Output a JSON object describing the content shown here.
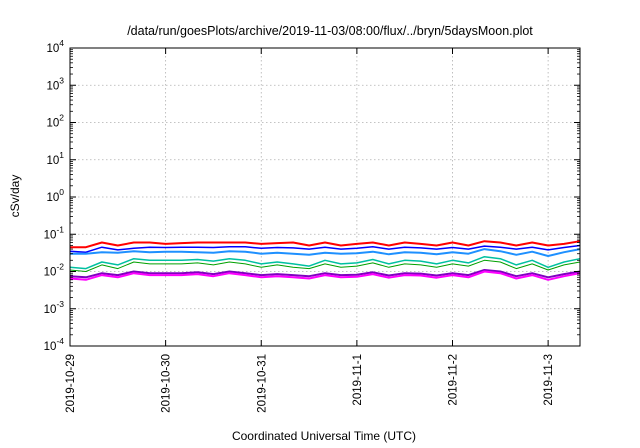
{
  "chart_data": {
    "type": "line",
    "title": "/data/run/goesPlots/archive/2019-11-03/08:00/flux/../bryn/5daysMoon.plot",
    "xlabel": "Coordinated Universal Time (UTC)",
    "ylabel": "cSv/day",
    "y_scale": "log",
    "ylim": [
      0.0001,
      10000
    ],
    "y_ticks": [
      {
        "base": "10",
        "exp": "-4",
        "value": 0.0001
      },
      {
        "base": "10",
        "exp": "-3",
        "value": 0.001
      },
      {
        "base": "10",
        "exp": "-2",
        "value": 0.01
      },
      {
        "base": "10",
        "exp": "-1",
        "value": 0.1
      },
      {
        "base": "10",
        "exp": "0",
        "value": 1
      },
      {
        "base": "10",
        "exp": "1",
        "value": 10
      },
      {
        "base": "10",
        "exp": "2",
        "value": 100
      },
      {
        "base": "10",
        "exp": "3",
        "value": 1000
      },
      {
        "base": "10",
        "exp": "4",
        "value": 10000
      }
    ],
    "xlim": [
      "2019-10-29T00:00",
      "2019-11-03T08:00"
    ],
    "x_ticks": [
      "2019-10-29",
      "2019-10-30",
      "2019-10-31",
      "2019-11-1",
      "2019-11-2",
      "2019-11-3"
    ],
    "x": [
      "2019-10-29T00:00",
      "2019-10-29T04:00",
      "2019-10-29T08:00",
      "2019-10-29T12:00",
      "2019-10-29T16:00",
      "2019-10-29T20:00",
      "2019-10-30T00:00",
      "2019-10-30T04:00",
      "2019-10-30T08:00",
      "2019-10-30T12:00",
      "2019-10-30T16:00",
      "2019-10-30T20:00",
      "2019-10-31T00:00",
      "2019-10-31T04:00",
      "2019-10-31T08:00",
      "2019-10-31T12:00",
      "2019-10-31T16:00",
      "2019-10-31T20:00",
      "2019-11-01T00:00",
      "2019-11-01T04:00",
      "2019-11-01T08:00",
      "2019-11-01T12:00",
      "2019-11-01T16:00",
      "2019-11-01T20:00",
      "2019-11-02T00:00",
      "2019-11-02T04:00",
      "2019-11-02T08:00",
      "2019-11-02T12:00",
      "2019-11-02T16:00",
      "2019-11-02T20:00",
      "2019-11-03T00:00",
      "2019-11-03T04:00",
      "2019-11-03T08:00"
    ],
    "grid": true,
    "series": [
      {
        "color": "#ff0000",
        "width": 2,
        "values": [
          0.045,
          0.045,
          0.06,
          0.05,
          0.06,
          0.06,
          0.055,
          0.058,
          0.06,
          0.06,
          0.06,
          0.06,
          0.055,
          0.058,
          0.06,
          0.05,
          0.06,
          0.05,
          0.055,
          0.06,
          0.05,
          0.06,
          0.055,
          0.05,
          0.06,
          0.05,
          0.065,
          0.06,
          0.05,
          0.06,
          0.05,
          0.055,
          0.065
        ]
      },
      {
        "color": "#0000ff",
        "width": 1.5,
        "values": [
          0.035,
          0.033,
          0.045,
          0.038,
          0.042,
          0.045,
          0.044,
          0.045,
          0.045,
          0.044,
          0.046,
          0.046,
          0.042,
          0.044,
          0.043,
          0.04,
          0.045,
          0.04,
          0.042,
          0.046,
          0.04,
          0.045,
          0.043,
          0.04,
          0.044,
          0.04,
          0.048,
          0.045,
          0.04,
          0.045,
          0.038,
          0.044,
          0.05
        ]
      },
      {
        "color": "#1e90ff",
        "width": 2,
        "values": [
          0.03,
          0.03,
          0.033,
          0.032,
          0.035,
          0.033,
          0.034,
          0.034,
          0.033,
          0.032,
          0.035,
          0.034,
          0.03,
          0.032,
          0.03,
          0.028,
          0.032,
          0.03,
          0.031,
          0.034,
          0.029,
          0.033,
          0.032,
          0.029,
          0.033,
          0.03,
          0.04,
          0.035,
          0.028,
          0.034,
          0.026,
          0.033,
          0.04
        ]
      },
      {
        "color": "#00c0a0",
        "width": 1.5,
        "values": [
          0.013,
          0.012,
          0.018,
          0.015,
          0.022,
          0.02,
          0.02,
          0.02,
          0.021,
          0.019,
          0.022,
          0.02,
          0.016,
          0.018,
          0.016,
          0.014,
          0.02,
          0.016,
          0.017,
          0.021,
          0.016,
          0.02,
          0.019,
          0.016,
          0.02,
          0.017,
          0.025,
          0.022,
          0.015,
          0.02,
          0.013,
          0.018,
          0.022
        ]
      },
      {
        "color": "#00a000",
        "width": 1,
        "values": [
          0.011,
          0.01,
          0.015,
          0.012,
          0.018,
          0.016,
          0.016,
          0.016,
          0.017,
          0.015,
          0.018,
          0.016,
          0.013,
          0.015,
          0.013,
          0.012,
          0.016,
          0.013,
          0.014,
          0.017,
          0.013,
          0.016,
          0.015,
          0.013,
          0.016,
          0.014,
          0.02,
          0.018,
          0.012,
          0.016,
          0.011,
          0.015,
          0.018
        ]
      },
      {
        "color": "#8000c0",
        "width": 2,
        "values": [
          0.0075,
          0.007,
          0.009,
          0.008,
          0.01,
          0.009,
          0.009,
          0.009,
          0.0095,
          0.0085,
          0.01,
          0.009,
          0.008,
          0.0085,
          0.008,
          0.0075,
          0.009,
          0.008,
          0.0082,
          0.0095,
          0.0078,
          0.009,
          0.0088,
          0.0078,
          0.009,
          0.008,
          0.011,
          0.01,
          0.0075,
          0.009,
          0.007,
          0.0085,
          0.01
        ]
      },
      {
        "color": "#ff00ff",
        "width": 2,
        "values": [
          0.0065,
          0.006,
          0.008,
          0.007,
          0.009,
          0.008,
          0.008,
          0.008,
          0.0085,
          0.0075,
          0.009,
          0.008,
          0.007,
          0.0075,
          0.007,
          0.0065,
          0.008,
          0.007,
          0.0072,
          0.0085,
          0.0068,
          0.008,
          0.0078,
          0.0068,
          0.008,
          0.007,
          0.01,
          0.009,
          0.0065,
          0.008,
          0.006,
          0.0075,
          0.009
        ]
      }
    ]
  }
}
